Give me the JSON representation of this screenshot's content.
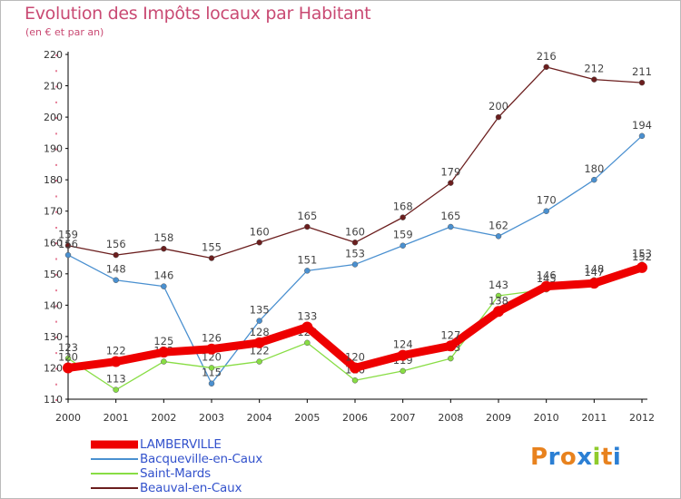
{
  "header": {
    "title": "Evolution des Impôts locaux par Habitant",
    "subtitle": "(en € et par an)"
  },
  "logo": {
    "text": "Proxiti"
  },
  "colors": {
    "axis": "#000000",
    "tick_label": "#333333",
    "value_label": "#444444",
    "grid_tick": "#cc0033",
    "legend_text": "#3352cc"
  },
  "chart_data": {
    "type": "line",
    "x": [
      "2000",
      "2001",
      "2002",
      "2003",
      "2004",
      "2005",
      "2006",
      "2007",
      "2008",
      "2009",
      "2010",
      "2011",
      "2012"
    ],
    "ylim": [
      110,
      220
    ],
    "yticks": [
      110,
      120,
      130,
      140,
      150,
      160,
      170,
      180,
      190,
      200,
      210,
      220
    ],
    "legend_position": "bottom-left",
    "series": [
      {
        "name": "Beauval-en-Caux",
        "color": "#6b1e1e",
        "values": [
          159,
          156,
          158,
          155,
          160,
          165,
          160,
          168,
          179,
          200,
          216,
          212,
          211
        ],
        "labels": [
          "159",
          "156",
          "158",
          "155",
          "160",
          "165",
          "160",
          "168",
          "179",
          "200",
          "216",
          "212",
          "211"
        ]
      },
      {
        "name": "Bacqueville-en-Caux",
        "color": "#4a90d0",
        "values": [
          156,
          148,
          146,
          115,
          135,
          151,
          153,
          159,
          165,
          162,
          170,
          180,
          194
        ],
        "labels": [
          "156",
          "148",
          "146",
          "115",
          "135",
          "151",
          "153",
          "159",
          "165",
          "162",
          "170",
          "180",
          "194"
        ]
      },
      {
        "name": "Saint-Mards",
        "color": "#88dd44",
        "values": [
          123,
          113,
          122,
          120,
          122,
          128,
          116,
          119,
          123,
          143,
          145,
          148,
          153
        ],
        "labels": [
          "123",
          "113",
          "122",
          "120",
          "122",
          "128",
          "116",
          "119",
          "123",
          "143",
          "145",
          "148",
          "153"
        ]
      },
      {
        "name": "LAMBERVILLE",
        "color": "#ee0000",
        "values": [
          120,
          122,
          125,
          126,
          128,
          133,
          120,
          124,
          127,
          138,
          146,
          147,
          152
        ],
        "labels": [
          "120",
          "122",
          "125",
          "126",
          "128",
          "133",
          "120",
          "124",
          "127",
          "138",
          "146",
          "147",
          "152"
        ]
      }
    ]
  },
  "legend": {
    "items": [
      {
        "label": "LAMBERVILLE",
        "color": "#ee0000"
      },
      {
        "label": "Bacqueville-en-Caux",
        "color": "#4a90d0"
      },
      {
        "label": "Saint-Mards",
        "color": "#88dd44"
      },
      {
        "label": "Beauval-en-Caux",
        "color": "#6b1e1e"
      }
    ]
  }
}
